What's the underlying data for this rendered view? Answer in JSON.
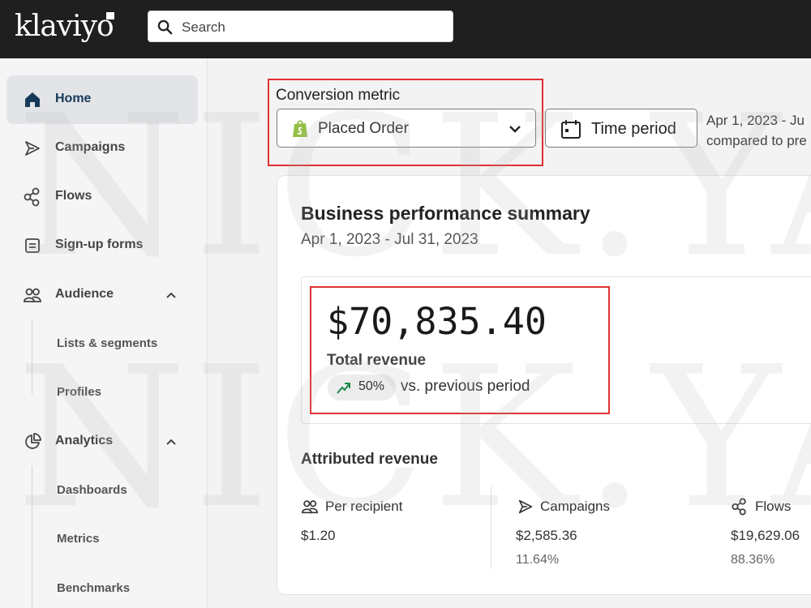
{
  "topbar": {
    "logo": "klaviyo",
    "search": {
      "placeholder": "Search",
      "icon": "search-icon"
    }
  },
  "sidebar": {
    "items": [
      {
        "label": "Home",
        "icon": "home-icon",
        "active": true
      },
      {
        "label": "Campaigns",
        "icon": "send-icon"
      },
      {
        "label": "Flows",
        "icon": "flows-icon"
      },
      {
        "label": "Sign-up forms",
        "icon": "form-icon"
      },
      {
        "label": "Audience",
        "icon": "audience-icon",
        "expanded": true
      },
      {
        "label": "Lists & segments"
      },
      {
        "label": "Profiles"
      },
      {
        "label": "Analytics",
        "icon": "analytics-icon",
        "expanded": true
      },
      {
        "label": "Dashboards"
      },
      {
        "label": "Metrics"
      },
      {
        "label": "Benchmarks"
      }
    ]
  },
  "filters": {
    "conversion_label": "Conversion metric",
    "conversion_value": "Placed Order",
    "time_period_label": "Time period",
    "date_line1": "Apr 1, 2023 - Ju",
    "date_line2": "compared to pre"
  },
  "summary": {
    "title": "Business performance summary",
    "date_range": "Apr 1, 2023 - Jul 31, 2023",
    "total_revenue": "$70,835.40",
    "total_revenue_label": "Total revenue",
    "change_pct": "50%",
    "change_text": "vs. previous period",
    "attributed_title": "Attributed revenue",
    "attributed": [
      {
        "label": "Per recipient",
        "value": "$1.20",
        "pct": ""
      },
      {
        "label": "Campaigns",
        "value": "$2,585.36",
        "pct": "11.64%"
      },
      {
        "label": "Flows",
        "value": "$19,629.06",
        "pct": "88.36%"
      }
    ]
  },
  "watermark": "NICK.YAT",
  "colors": {
    "topbar": "#1f1f1f",
    "highlight": "#e03131",
    "positive": "#1a8a4a",
    "shopify": "#95bf47"
  }
}
